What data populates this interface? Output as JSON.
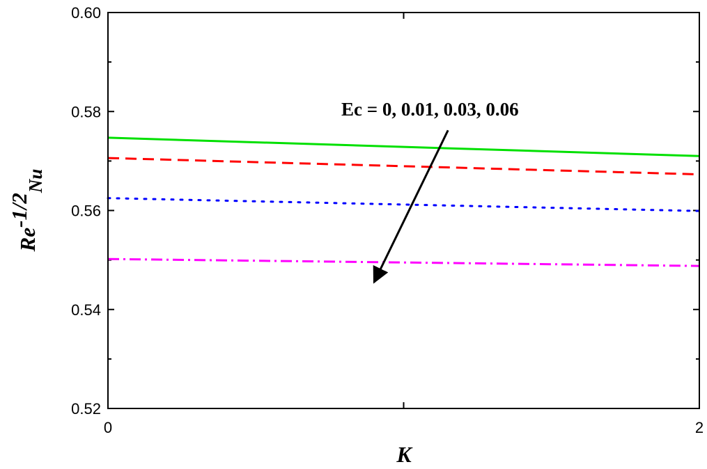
{
  "chart_data": {
    "type": "line",
    "title": "",
    "xlabel": "K",
    "ylabel": {
      "base": "Re",
      "exponent": "-1/2",
      "subscript": "Nu"
    },
    "xlim": [
      0,
      2
    ],
    "ylim": [
      0.52,
      0.6
    ],
    "x_ticks": [
      0,
      2
    ],
    "x_tick_labels": [
      "0",
      "2"
    ],
    "x_minor_ticks": [
      1
    ],
    "y_ticks": [
      0.52,
      0.54,
      0.56,
      0.58,
      0.6
    ],
    "y_tick_labels": [
      "0.52",
      "0.54",
      "0.56",
      "0.58",
      "0.60"
    ],
    "y_minor_ticks": [
      0.53,
      0.55,
      0.57,
      0.59
    ],
    "grid": false,
    "series": [
      {
        "x": [
          0,
          2
        ],
        "values": [
          0.5747,
          0.571
        ],
        "color": "#00e000",
        "dash": "solid"
      },
      {
        "x": [
          0,
          2
        ],
        "values": [
          0.5706,
          0.5673
        ],
        "color": "#ff0000",
        "dash": "dash"
      },
      {
        "x": [
          0,
          2
        ],
        "values": [
          0.5625,
          0.5599
        ],
        "color": "#0000ff",
        "dash": "dot"
      },
      {
        "x": [
          0,
          2
        ],
        "values": [
          0.5502,
          0.5488
        ],
        "color": "#ff00ff",
        "dash": "dashdot"
      }
    ],
    "annotation": {
      "text": "Ec = 0, 0.01, 0.03, 0.06",
      "arrow_from": [
        1.15,
        0.5762
      ],
      "arrow_to": [
        0.9,
        0.5455
      ]
    }
  }
}
